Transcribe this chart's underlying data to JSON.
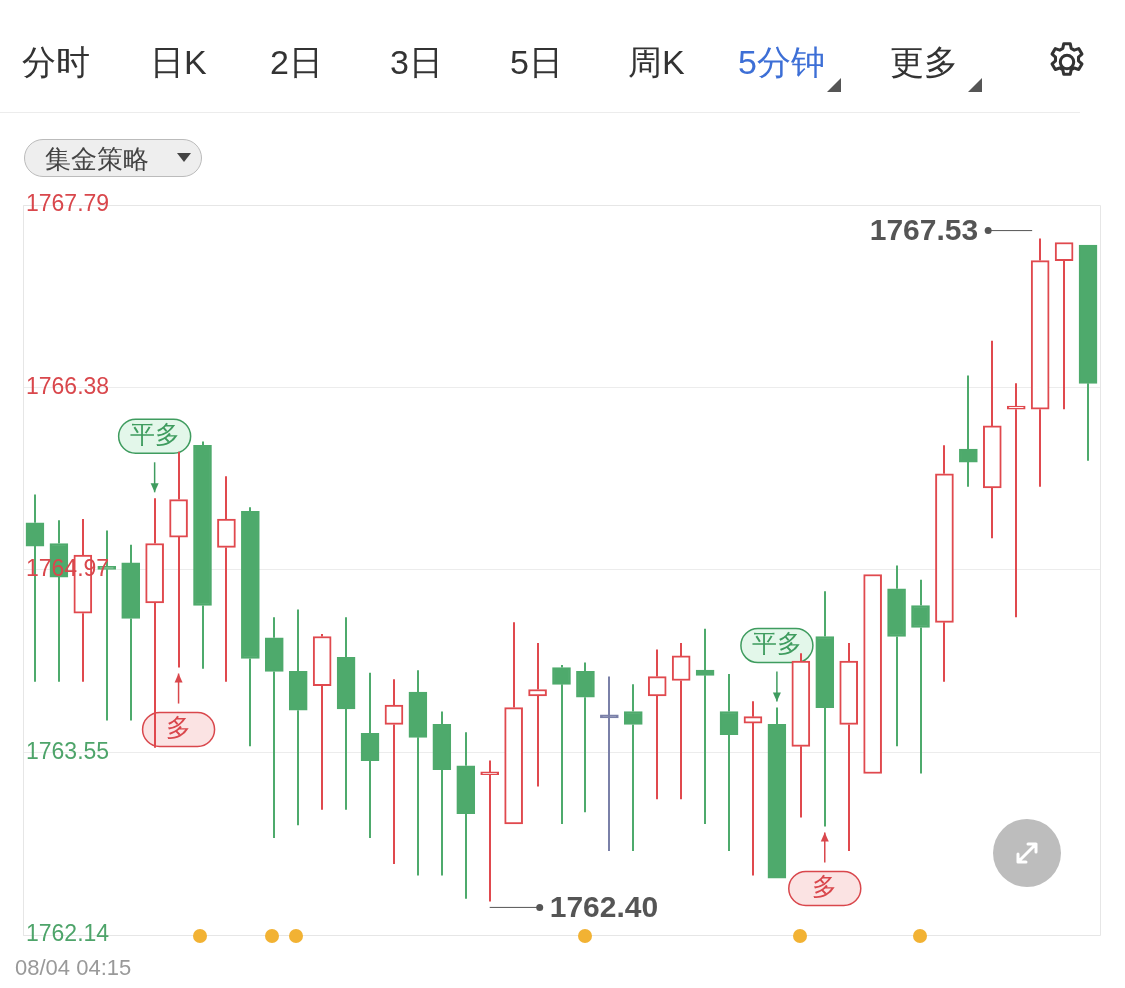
{
  "chart_data": {
    "type": "candlestick",
    "categories": [
      null,
      null,
      null,
      null,
      null,
      null,
      null,
      null,
      null,
      null,
      null,
      null,
      null,
      null,
      null,
      null,
      null,
      null,
      null,
      null,
      null,
      null,
      null,
      null,
      null,
      null,
      null,
      null,
      null,
      null,
      null,
      null,
      null,
      null,
      null,
      null,
      null,
      null,
      null,
      null,
      null,
      null,
      null,
      null,
      null
    ],
    "ohlc": [
      [
        1765.33,
        1765.55,
        1764.1,
        1765.15
      ],
      [
        1765.17,
        1765.35,
        1764.1,
        1764.91
      ],
      [
        1764.63,
        1765.36,
        1764.1,
        1765.08
      ],
      [
        1764.99,
        1765.27,
        1763.8,
        1764.97
      ],
      [
        1765.02,
        1765.16,
        1763.8,
        1764.59
      ],
      [
        1764.71,
        1765.52,
        1763.59,
        1765.17
      ],
      [
        1765.22,
        1765.88,
        1764.21,
        1765.51
      ],
      [
        1765.93,
        1765.96,
        1764.2,
        1764.69
      ],
      [
        1765.14,
        1765.69,
        1764.1,
        1765.36
      ],
      [
        1765.42,
        1765.45,
        1763.6,
        1764.28
      ],
      [
        1764.44,
        1764.6,
        1762.89,
        1764.18
      ],
      [
        1764.18,
        1764.66,
        1762.99,
        1763.88
      ],
      [
        1764.07,
        1764.47,
        1763.11,
        1764.45
      ],
      [
        1764.29,
        1764.6,
        1763.11,
        1763.89
      ],
      [
        1763.7,
        1764.17,
        1762.89,
        1763.49
      ],
      [
        1763.77,
        1764.12,
        1762.69,
        1763.92
      ],
      [
        1764.02,
        1764.19,
        1762.6,
        1763.67
      ],
      [
        1763.77,
        1763.87,
        1762.6,
        1763.42
      ],
      [
        1763.45,
        1763.71,
        1762.42,
        1763.08
      ],
      [
        1763.38,
        1763.49,
        1762.4,
        1763.4
      ],
      [
        1763.0,
        1764.56,
        1763.0,
        1763.9
      ],
      [
        1763.99,
        1764.4,
        1763.29,
        1764.04
      ],
      [
        1764.21,
        1764.23,
        1763.0,
        1764.08
      ],
      [
        1764.18,
        1764.25,
        1763.09,
        1763.98
      ],
      [
        1763.82,
        1764.14,
        1762.79,
        1763.82
      ],
      [
        1763.87,
        1764.08,
        1762.79,
        1763.77
      ],
      [
        1763.99,
        1764.35,
        1763.19,
        1764.14
      ],
      [
        1764.11,
        1764.4,
        1763.19,
        1764.3
      ],
      [
        1764.19,
        1764.51,
        1763.0,
        1764.15
      ],
      [
        1763.87,
        1764.16,
        1762.79,
        1763.69
      ],
      [
        1763.78,
        1763.95,
        1762.6,
        1763.83
      ],
      [
        1763.77,
        1763.9,
        1762.58,
        1762.58
      ],
      [
        1763.6,
        1764.32,
        1763.05,
        1764.26
      ],
      [
        1764.45,
        1764.8,
        1762.98,
        1763.9
      ],
      [
        1763.77,
        1764.4,
        1762.79,
        1764.26
      ],
      [
        1763.39,
        1764.93,
        1763.39,
        1764.93
      ],
      [
        1764.82,
        1765.0,
        1763.6,
        1764.45
      ],
      [
        1764.69,
        1764.89,
        1763.39,
        1764.52
      ],
      [
        1764.56,
        1765.93,
        1764.1,
        1765.71
      ],
      [
        1765.9,
        1766.47,
        1765.61,
        1765.8
      ],
      [
        1765.6,
        1766.74,
        1765.21,
        1766.08
      ],
      [
        1766.21,
        1766.41,
        1764.6,
        1766.23
      ],
      [
        1766.21,
        1767.53,
        1765.61,
        1767.36
      ],
      [
        1767.36,
        1767.5,
        1766.21,
        1767.5
      ],
      [
        1767.48,
        1767.48,
        1765.81,
        1766.41
      ]
    ],
    "colors": [
      "#4eaa6c",
      "#4eaa6c",
      "#e0494e",
      "#4eaa6c",
      "#4eaa6c",
      "#e0494e",
      "#e0494e",
      "#4eaa6c",
      "#e0494e",
      "#4eaa6c",
      "#4eaa6c",
      "#4eaa6c",
      "#e0494e",
      "#4eaa6c",
      "#4eaa6c",
      "#e0494e",
      "#4eaa6c",
      "#4eaa6c",
      "#4eaa6c",
      "#e0494e",
      "#e0494e",
      "#e0494e",
      "#4eaa6c",
      "#4eaa6c",
      "#7a80a8",
      "#4eaa6c",
      "#e0494e",
      "#e0494e",
      "#4eaa6c",
      "#4eaa6c",
      "#e0494e",
      "#4eaa6c",
      "#e0494e",
      "#4eaa6c",
      "#e0494e",
      "#e0494e",
      "#4eaa6c",
      "#4eaa6c",
      "#e0494e",
      "#4eaa6c",
      "#e0494e",
      "#e0494e",
      "#e0494e",
      "#e0494e",
      "#4eaa6c"
    ],
    "ylim": [
      1762.14,
      1767.79
    ],
    "yticks": [
      1762.14,
      1763.55,
      1764.97,
      1766.38,
      1767.79
    ],
    "grid": "y",
    "annotations": [
      "分时",
      "日K",
      "2日",
      "3日",
      "5日",
      "周K",
      "5分钟",
      "更多",
      "集金策略",
      "08/04 04:15",
      "1767.53",
      "1762.40",
      "平多",
      "多",
      "平多",
      "多"
    ]
  }
}
